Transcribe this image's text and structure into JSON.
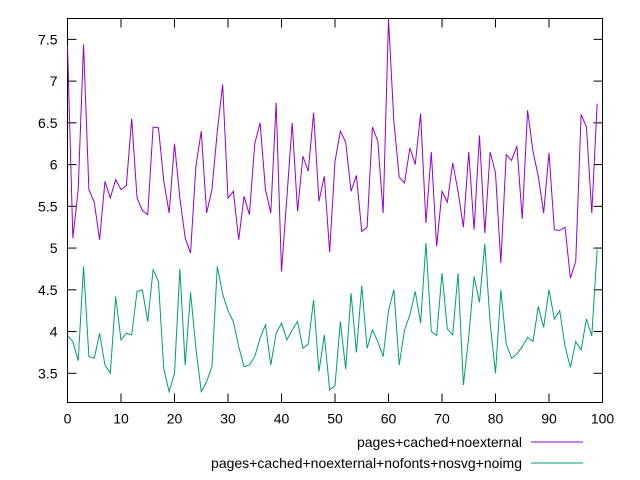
{
  "chart_data": {
    "type": "line",
    "title": "",
    "xlabel": "",
    "ylabel": "",
    "xlim": [
      0,
      100
    ],
    "ylim": [
      3.15,
      7.75
    ],
    "xticks": [
      "0",
      "10",
      "20",
      "30",
      "40",
      "50",
      "60",
      "70",
      "80",
      "90",
      "100"
    ],
    "yticks": [
      "3.5",
      "4",
      "4.5",
      "5",
      "5.5",
      "6",
      "6.5",
      "7",
      "7.5"
    ],
    "xtick_values": [
      0,
      10,
      20,
      30,
      40,
      50,
      60,
      70,
      80,
      90,
      100
    ],
    "ytick_values": [
      3.5,
      4,
      4.5,
      5,
      5.5,
      6,
      6.5,
      7,
      7.5
    ],
    "grid": false,
    "legend_position": "bottom-right",
    "series": [
      {
        "name": "pages+cached+noexternal",
        "color": "#9400d3",
        "values": [
          7.42,
          5.12,
          5.7,
          7.44,
          5.7,
          5.55,
          5.1,
          5.8,
          5.6,
          5.82,
          5.7,
          5.75,
          6.55,
          5.6,
          5.45,
          5.4,
          6.45,
          6.44,
          5.8,
          5.42,
          6.25,
          5.6,
          5.12,
          4.94,
          5.98,
          6.4,
          5.42,
          5.7,
          6.4,
          6.96,
          5.6,
          5.68,
          5.1,
          5.62,
          5.4,
          6.25,
          6.5,
          5.7,
          5.42,
          6.74,
          4.72,
          5.6,
          6.5,
          5.44,
          6.1,
          5.92,
          6.62,
          5.56,
          5.86,
          4.95,
          6.04,
          6.4,
          6.27,
          5.68,
          5.87,
          5.2,
          5.25,
          6.45,
          6.28,
          5.42,
          7.74,
          6.52,
          5.85,
          5.78,
          6.2,
          6.0,
          6.61,
          5.3,
          6.15,
          5.02,
          5.68,
          5.55,
          6.02,
          5.68,
          5.25,
          6.15,
          5.22,
          6.35,
          5.18,
          6.15,
          5.9,
          4.82,
          6.12,
          6.05,
          6.22,
          5.35,
          6.65,
          6.16,
          5.86,
          5.42,
          6.14,
          5.22,
          5.21,
          5.25,
          4.64,
          4.84,
          6.6,
          6.45,
          5.42,
          6.73
        ]
      },
      {
        "name": "pages+cached+noexternal+nofonts+nosvg+noimg",
        "color": "#009e73",
        "values": [
          3.95,
          3.88,
          3.65,
          4.78,
          3.7,
          3.68,
          3.98,
          3.6,
          3.5,
          4.42,
          3.9,
          3.98,
          3.96,
          4.48,
          4.5,
          4.12,
          4.74,
          4.6,
          3.55,
          3.28,
          3.5,
          4.75,
          3.6,
          4.47,
          3.8,
          3.28,
          3.4,
          3.58,
          4.78,
          4.45,
          4.25,
          4.12,
          3.82,
          3.58,
          3.6,
          3.7,
          3.92,
          4.08,
          3.6,
          3.98,
          4.1,
          3.9,
          4.02,
          4.12,
          3.8,
          3.85,
          4.38,
          3.52,
          3.96,
          3.3,
          3.35,
          4.12,
          3.55,
          4.46,
          3.75,
          4.55,
          3.8,
          4.02,
          3.88,
          3.7,
          4.25,
          4.5,
          3.6,
          4.02,
          4.2,
          4.48,
          4.1,
          5.06,
          4.0,
          3.95,
          4.7,
          4.03,
          3.96,
          4.7,
          3.36,
          3.94,
          4.66,
          4.35,
          5.05,
          4.1,
          3.5,
          4.5,
          3.85,
          3.68,
          3.73,
          3.82,
          3.93,
          3.88,
          4.3,
          4.05,
          4.5,
          4.15,
          4.25,
          3.82,
          3.57,
          3.88,
          3.78,
          4.15,
          3.95,
          4.98
        ]
      }
    ]
  }
}
